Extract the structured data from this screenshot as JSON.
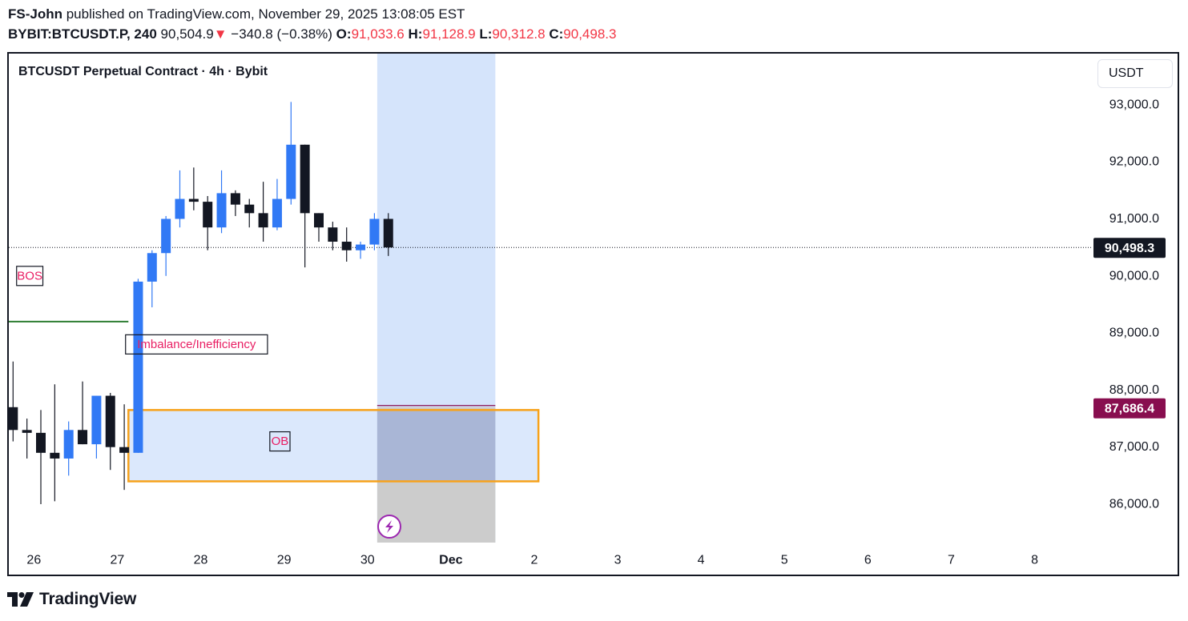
{
  "header": {
    "author": "FS-John",
    "published": " published on TradingView.com, November 29, 2025 13:08:05 EST",
    "symbol": "BYBIT:BTCUSDT.P, 240",
    "last": "90,504.9",
    "change_arrow": "▼",
    "change": "−340.8 (−0.38%)",
    "o_label": "O:",
    "o_value": "91,033.6",
    "h_label": "H:",
    "h_value": "91,128.9",
    "l_label": "L:",
    "l_value": "90,312.8",
    "c_label": "C:",
    "c_value": "90,498.3"
  },
  "chart_title": "BTCUSDT Perpetual Contract · 4h · Bybit",
  "currency_button": "USDT",
  "footer_brand": "TradingView",
  "colors": {
    "up": "#3179f5",
    "down": "#131722",
    "bos_line": "#2e7d32",
    "ob_border": "#f7a21b",
    "zone_fill": "#d5e4fb",
    "label_text": "#e91e63",
    "price_tag": "#131722",
    "level_tag": "#880e4f"
  },
  "chart_data": {
    "type": "candlestick",
    "title": "BTCUSDT Perpetual Contract · 4h · Bybit",
    "ylim": [
      85400,
      93800
    ],
    "yticks": [
      86000,
      87000,
      88000,
      89000,
      90000,
      91000,
      92000,
      93000
    ],
    "ytick_labels": [
      "86,000.0",
      "87,000.0",
      "88,000.0",
      "89,000.0",
      "90,000.0",
      "91,000.0",
      "92,000.0",
      "93,000.0"
    ],
    "xtick_labels": [
      "26",
      "27",
      "28",
      "29",
      "30",
      "Dec",
      "2",
      "3",
      "4",
      "5",
      "6",
      "7",
      "8"
    ],
    "xtick_index": [
      1.5,
      7.5,
      13.5,
      19.5,
      25.5,
      31.5,
      37.5,
      43.5,
      49.5,
      55.5,
      61.5,
      67.5,
      73.5
    ],
    "candles": [
      {
        "o": 87700,
        "h": 88500,
        "l": 87100,
        "c": 87300
      },
      {
        "o": 87300,
        "h": 87500,
        "l": 86800,
        "c": 87250
      },
      {
        "o": 87250,
        "h": 87650,
        "l": 86000,
        "c": 86900
      },
      {
        "o": 86900,
        "h": 88100,
        "l": 86050,
        "c": 86800
      },
      {
        "o": 86800,
        "h": 87450,
        "l": 86500,
        "c": 87300
      },
      {
        "o": 87300,
        "h": 88150,
        "l": 87050,
        "c": 87050
      },
      {
        "o": 87050,
        "h": 87900,
        "l": 86800,
        "c": 87900
      },
      {
        "o": 87900,
        "h": 87950,
        "l": 86600,
        "c": 87000
      },
      {
        "o": 87000,
        "h": 87750,
        "l": 86250,
        "c": 86900
      },
      {
        "o": 86900,
        "h": 89950,
        "l": 86900,
        "c": 89900
      },
      {
        "o": 89900,
        "h": 90450,
        "l": 89450,
        "c": 90400
      },
      {
        "o": 90400,
        "h": 91050,
        "l": 90000,
        "c": 91000
      },
      {
        "o": 91000,
        "h": 91850,
        "l": 90850,
        "c": 91350
      },
      {
        "o": 91350,
        "h": 91900,
        "l": 91150,
        "c": 91300
      },
      {
        "o": 91300,
        "h": 91400,
        "l": 90450,
        "c": 90850
      },
      {
        "o": 90850,
        "h": 91850,
        "l": 90750,
        "c": 91450
      },
      {
        "o": 91450,
        "h": 91500,
        "l": 91050,
        "c": 91250
      },
      {
        "o": 91250,
        "h": 91350,
        "l": 90850,
        "c": 91100
      },
      {
        "o": 91100,
        "h": 91650,
        "l": 90600,
        "c": 90850
      },
      {
        "o": 90850,
        "h": 91700,
        "l": 90800,
        "c": 91350
      },
      {
        "o": 91350,
        "h": 93050,
        "l": 91250,
        "c": 92300
      },
      {
        "o": 92300,
        "h": 92300,
        "l": 90150,
        "c": 91100
      },
      {
        "o": 91100,
        "h": 91100,
        "l": 90600,
        "c": 90850
      },
      {
        "o": 90850,
        "h": 90950,
        "l": 90450,
        "c": 90600
      },
      {
        "o": 90600,
        "h": 90850,
        "l": 90250,
        "c": 90450
      },
      {
        "o": 90450,
        "h": 90600,
        "l": 90300,
        "c": 90550
      },
      {
        "o": 90550,
        "h": 91100,
        "l": 90450,
        "c": 91000
      },
      {
        "o": 91000,
        "h": 91100,
        "l": 90350,
        "c": 90500
      }
    ],
    "current_price": 90498.3,
    "current_price_label": "90,498.3",
    "level_price": 87686.4,
    "level_price_label": "87,686.4",
    "annotations": [
      {
        "type": "label",
        "text": "BOS",
        "price": 90000,
        "index": 1.2
      },
      {
        "type": "label",
        "text": "Imbalance/Inefficiency",
        "price": 88800,
        "index": 13.2
      },
      {
        "type": "label",
        "text": "OB",
        "price": 87100,
        "index": 19.2
      },
      {
        "type": "hline",
        "name": "bos-level",
        "price": 89200,
        "from_index": -0.5,
        "to_index": 8.3
      },
      {
        "type": "zone",
        "name": "order-block",
        "top": 87650,
        "bottom": 86400,
        "from_index": 8.3,
        "to_index": 37.8
      },
      {
        "type": "vrange",
        "name": "projection-range",
        "from_index": 26.2,
        "to_index": 34.7
      },
      {
        "type": "zone",
        "name": "target-zone",
        "top": 87700,
        "bottom": 85500,
        "from_index": 26.2,
        "to_index": 34.7
      }
    ]
  }
}
